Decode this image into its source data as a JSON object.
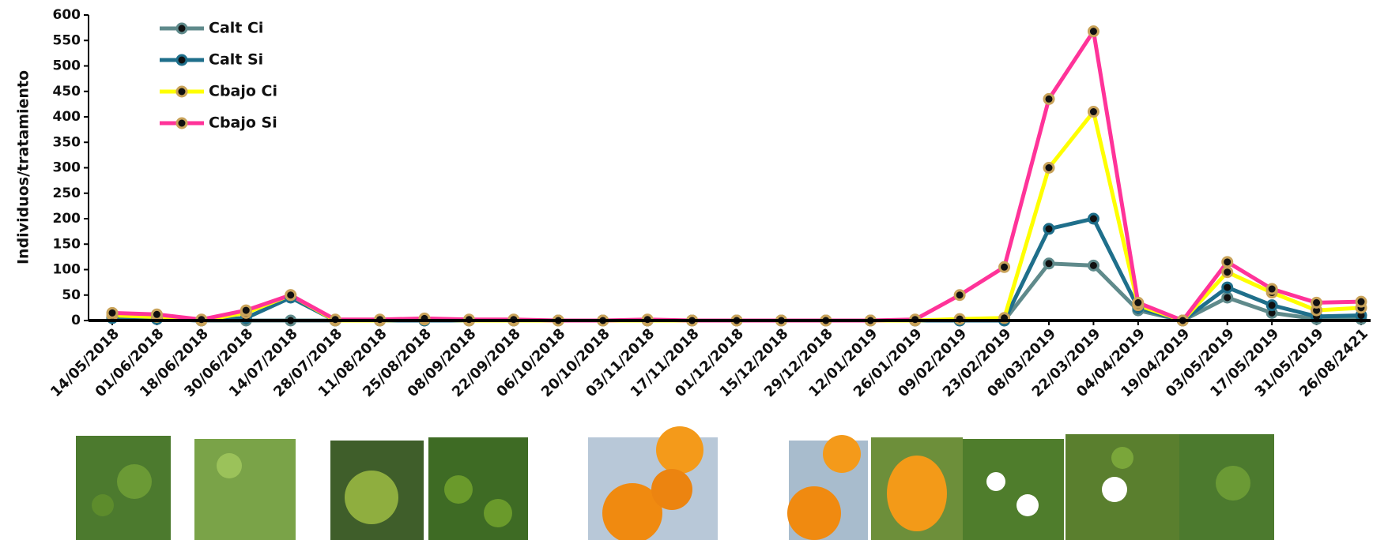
{
  "chart_data": {
    "type": "line",
    "y_label": "Individuos/tratamiento",
    "categories": [
      "14/05/2018",
      "01/06/2018",
      "18/06/2018",
      "30/06/2018",
      "14/07/2018",
      "28/07/2018",
      "11/08/2018",
      "25/08/2018",
      "08/09/2018",
      "22/09/2018",
      "06/10/2018",
      "20/10/2018",
      "03/11/2018",
      "17/11/2018",
      "01/12/2018",
      "15/12/2018",
      "29/12/2018",
      "12/01/2019",
      "26/01/2019",
      "09/02/2019",
      "23/02/2019",
      "08/03/2019",
      "22/03/2019",
      "04/04/2019",
      "19/04/2019",
      "03/05/2019",
      "17/05/2019",
      "31/05/2019",
      "26/08/2421"
    ],
    "series": [
      {
        "name": "Calt Ci",
        "color": "#5f8a8b",
        "values": [
          5,
          3,
          0,
          0,
          0,
          0,
          0,
          0,
          0,
          0,
          0,
          0,
          0,
          0,
          0,
          0,
          0,
          0,
          0,
          0,
          0,
          112,
          108,
          20,
          0,
          45,
          15,
          3,
          3
        ]
      },
      {
        "name": "Calt Si",
        "color": "#1f6f8b",
        "values": [
          5,
          3,
          0,
          5,
          45,
          0,
          0,
          0,
          0,
          0,
          0,
          0,
          0,
          0,
          0,
          0,
          0,
          0,
          0,
          0,
          0,
          180,
          200,
          25,
          0,
          65,
          30,
          8,
          10
        ]
      },
      {
        "name": "Cbajo Ci",
        "color": "#ffff00",
        "values": [
          10,
          7,
          0,
          15,
          50,
          0,
          0,
          2,
          0,
          0,
          0,
          0,
          0,
          0,
          0,
          0,
          0,
          0,
          0,
          3,
          5,
          300,
          410,
          30,
          0,
          95,
          55,
          20,
          25
        ]
      },
      {
        "name": "Cbajo Si",
        "color": "#ff3399",
        "values": [
          15,
          12,
          2,
          20,
          50,
          2,
          2,
          4,
          2,
          2,
          0,
          0,
          2,
          0,
          0,
          0,
          0,
          0,
          2,
          50,
          105,
          435,
          568,
          35,
          0,
          115,
          62,
          35,
          37
        ]
      }
    ],
    "ylim": [
      0,
      600
    ],
    "yticks": [
      0,
      50,
      100,
      150,
      200,
      250,
      300,
      350,
      400,
      450,
      500,
      550,
      600
    ]
  }
}
